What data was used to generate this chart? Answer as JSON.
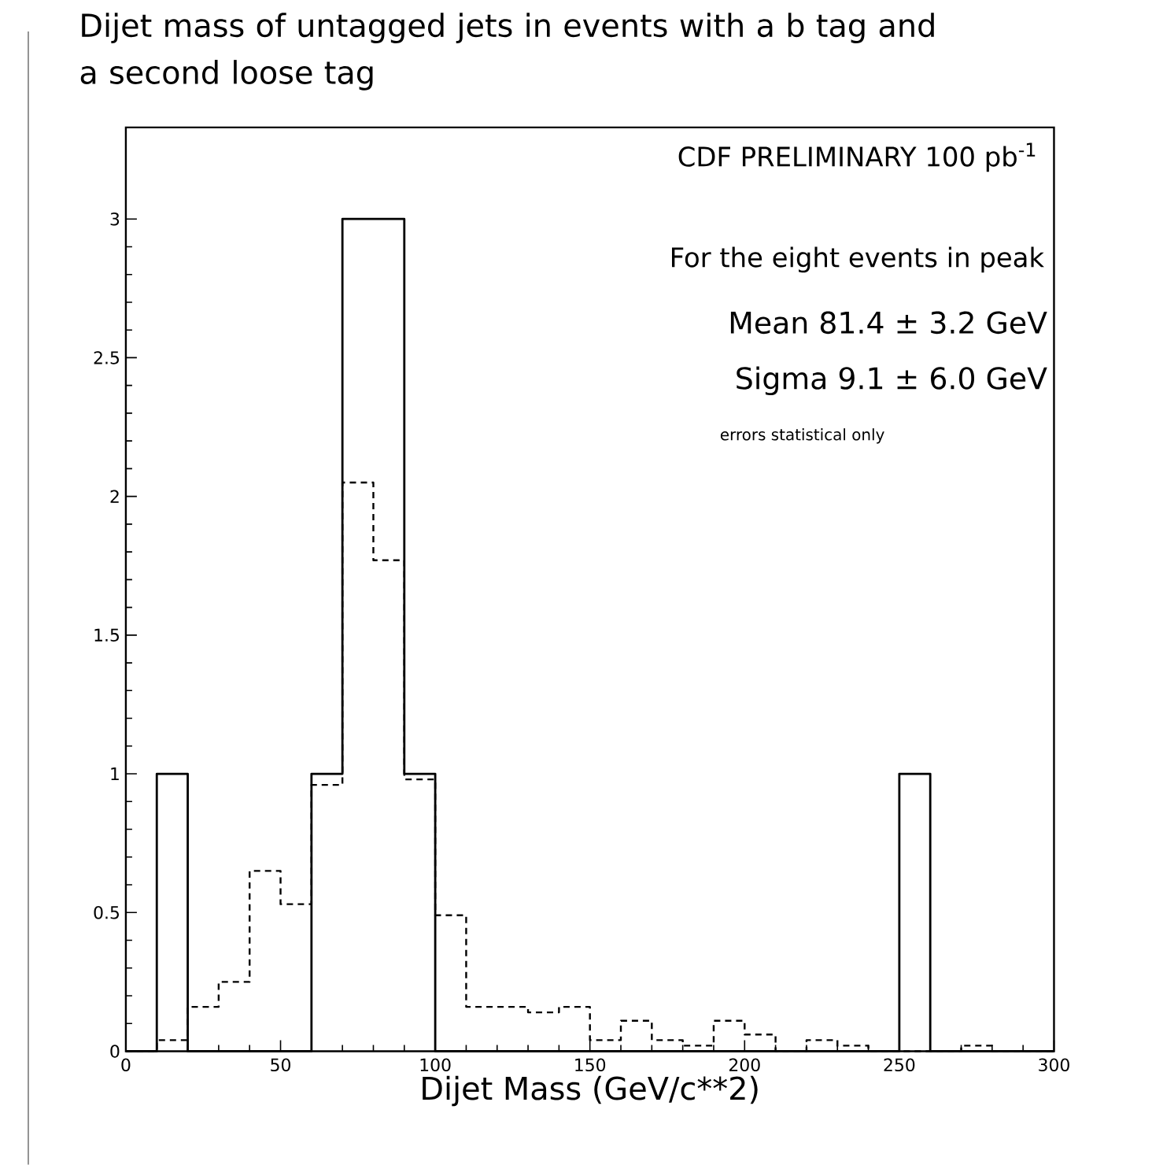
{
  "chart_data": {
    "type": "histogram",
    "title": "Dijet mass of untagged jets in events with a b tag and a second loose tag",
    "xlabel": "Dijet Mass (GeV/c**2)",
    "bins": [
      0,
      10,
      20,
      30,
      40,
      50,
      60,
      70,
      80,
      90,
      100,
      110,
      120,
      130,
      140,
      150,
      160,
      170,
      180,
      190,
      200,
      210,
      220,
      230,
      240,
      250,
      260,
      270,
      280,
      290,
      300
    ],
    "series": [
      {
        "color": "#000000",
        "line_style": "solid",
        "values": [
          0,
          1,
          0,
          0,
          0,
          0,
          1,
          3,
          3,
          1,
          0,
          0,
          0,
          0,
          0,
          0,
          0,
          0,
          0,
          0,
          0,
          0,
          0,
          0,
          0,
          1,
          0,
          0,
          0,
          0
        ]
      },
      {
        "color": "#000000",
        "line_style": "dashed",
        "values": [
          0,
          0.04,
          0.16,
          0.25,
          0.65,
          0.53,
          0.96,
          2.05,
          1.77,
          0.98,
          0.49,
          0.16,
          0.16,
          0.14,
          0.16,
          0.04,
          0.11,
          0.04,
          0.02,
          0.11,
          0.06,
          0,
          0.04,
          0.02,
          0,
          0,
          0,
          0.02,
          0,
          0
        ]
      }
    ],
    "xlim": [
      0,
      300
    ],
    "ylim": [
      0,
      3.33
    ],
    "xticks": [
      0,
      50,
      100,
      150,
      200,
      250,
      300
    ],
    "yticks": [
      0,
      0.5,
      1,
      1.5,
      2,
      2.5,
      3
    ],
    "annotations": [
      "CDF PRELIMINARY   100 pb$^{-1}$",
      "For the eight events in peak",
      "Mean 81.4 ±  3.2 GeV",
      "Sigma 9.1 ±  6.0 GeV",
      "errors statistical only"
    ],
    "tick_labels": true
  }
}
